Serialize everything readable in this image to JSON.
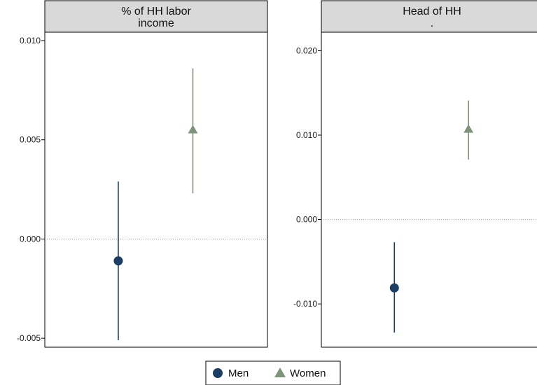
{
  "chart_data": [
    {
      "type": "scatter",
      "title_lines": [
        "% of HH labor",
        "income"
      ],
      "ylim": [
        -0.0051,
        0.01
      ],
      "yticks": [
        -0.005,
        0.0,
        0.005,
        0.01
      ],
      "ytick_labels": [
        "-0.005",
        "0.000",
        "0.005",
        "0.010"
      ],
      "reference_line": 0,
      "series": [
        {
          "name": "Men",
          "value": -0.0011,
          "ci_low": -0.0051,
          "ci_high": 0.0029
        },
        {
          "name": "Women",
          "value": 0.0055,
          "ci_low": 0.0023,
          "ci_high": 0.0086
        }
      ]
    },
    {
      "type": "scatter",
      "title_lines": [
        "Head of HH",
        "."
      ],
      "ylim": [
        -0.0143,
        0.0212
      ],
      "yticks": [
        -0.01,
        0.0,
        0.01,
        0.02
      ],
      "ytick_labels": [
        "-0.010",
        "0.000",
        "0.010",
        "0.020"
      ],
      "reference_line": 0,
      "series": [
        {
          "name": "Men",
          "value": -0.0081,
          "ci_low": -0.0134,
          "ci_high": -0.0027
        },
        {
          "name": "Women",
          "value": 0.0107,
          "ci_low": 0.0071,
          "ci_high": 0.0141
        }
      ]
    }
  ],
  "legend": {
    "position": "bottom",
    "items": [
      {
        "label": "Men",
        "marker": "circle"
      },
      {
        "label": "Women",
        "marker": "triangle"
      }
    ]
  },
  "colors": {
    "men": "#1a3e66",
    "women": "#7d9478",
    "title_bg": "#d9d9d9",
    "frame": "#000000",
    "reference": "#999999"
  }
}
